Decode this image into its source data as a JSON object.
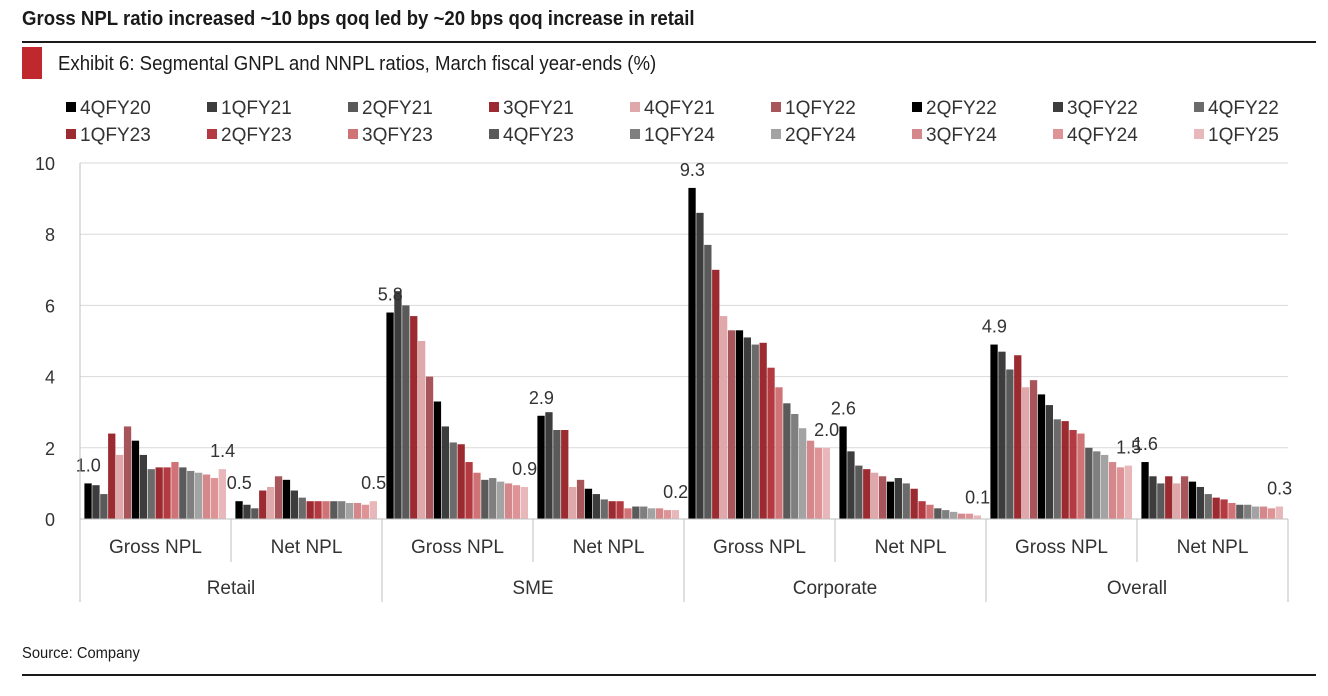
{
  "headline": "Gross NPL ratio increased ~10 bps qoq led by ~20 bps qoq increase in retail",
  "exhibit_title": "Exhibit 6: Segmental GNPL and NNPL ratios, March fiscal year-ends (%)",
  "source": "Source: Company",
  "colors": {
    "accent": "#c0282d",
    "series": [
      "#000000",
      "#3d3d3d",
      "#5a5a5a",
      "#9c2b31",
      "#dfa8ab",
      "#a8545b",
      "#000000",
      "#3d3d3d",
      "#6b6b6b",
      "#9c2b31",
      "#b23a40",
      "#cf7377",
      "#5a5a5a",
      "#7f7f7f",
      "#a3a3a3",
      "#d4888c",
      "#de9497",
      "#e7b7b9"
    ]
  },
  "chart_data": {
    "type": "bar",
    "title": "Exhibit 6: Segmental GNPL and NNPL ratios, March fiscal year-ends (%)",
    "ylim": [
      0,
      10
    ],
    "yticks": [
      "0",
      "2",
      "4",
      "6",
      "8",
      "10"
    ],
    "grid": true,
    "legend_position": "top",
    "groups": [
      "Retail",
      "SME",
      "Corporate",
      "Overall"
    ],
    "categories": [
      {
        "label": "Gross NPL",
        "group": "Retail"
      },
      {
        "label": "Net NPL",
        "group": "Retail"
      },
      {
        "label": "Gross NPL",
        "group": "SME"
      },
      {
        "label": "Net NPL",
        "group": "SME"
      },
      {
        "label": "Gross NPL",
        "group": "Corporate"
      },
      {
        "label": "Net NPL",
        "group": "Corporate"
      },
      {
        "label": "Gross NPL",
        "group": "Overall"
      },
      {
        "label": "Net NPL",
        "group": "Overall"
      }
    ],
    "series": [
      {
        "name": "4QFY20",
        "values": [
          1.0,
          0.5,
          5.8,
          2.9,
          9.3,
          2.6,
          4.9,
          1.6
        ]
      },
      {
        "name": "1QFY21",
        "values": [
          0.95,
          0.4,
          6.4,
          3.0,
          8.6,
          1.9,
          4.7,
          1.2
        ]
      },
      {
        "name": "2QFY21",
        "values": [
          0.7,
          0.3,
          6.0,
          2.5,
          7.7,
          1.5,
          4.2,
          1.0
        ]
      },
      {
        "name": "3QFY21",
        "values": [
          2.4,
          0.8,
          5.7,
          2.5,
          7.0,
          1.4,
          4.6,
          1.2
        ]
      },
      {
        "name": "4QFY21",
        "values": [
          1.8,
          0.9,
          5.0,
          0.9,
          5.7,
          1.3,
          3.7,
          1.0
        ]
      },
      {
        "name": "1QFY22",
        "values": [
          2.6,
          1.2,
          4.0,
          1.1,
          5.3,
          1.2,
          3.9,
          1.2
        ]
      },
      {
        "name": "2QFY22",
        "values": [
          2.2,
          1.1,
          3.3,
          0.85,
          5.3,
          1.05,
          3.5,
          1.05
        ]
      },
      {
        "name": "3QFY22",
        "values": [
          1.8,
          0.8,
          2.6,
          0.7,
          5.1,
          1.15,
          3.2,
          0.9
        ]
      },
      {
        "name": "4QFY22",
        "values": [
          1.4,
          0.6,
          2.15,
          0.55,
          4.9,
          1.0,
          2.8,
          0.7
        ]
      },
      {
        "name": "1QFY23",
        "values": [
          1.45,
          0.5,
          2.1,
          0.5,
          4.95,
          0.85,
          2.75,
          0.6
        ]
      },
      {
        "name": "2QFY23",
        "values": [
          1.45,
          0.5,
          1.6,
          0.5,
          4.25,
          0.5,
          2.5,
          0.55
        ]
      },
      {
        "name": "3QFY23",
        "values": [
          1.6,
          0.5,
          1.3,
          0.3,
          3.7,
          0.4,
          2.4,
          0.45
        ]
      },
      {
        "name": "4QFY23",
        "values": [
          1.45,
          0.5,
          1.1,
          0.35,
          3.25,
          0.3,
          2.0,
          0.4
        ]
      },
      {
        "name": "1QFY24",
        "values": [
          1.35,
          0.5,
          1.15,
          0.35,
          2.95,
          0.25,
          1.9,
          0.4
        ]
      },
      {
        "name": "2QFY24",
        "values": [
          1.3,
          0.45,
          1.05,
          0.3,
          2.55,
          0.2,
          1.8,
          0.35
        ]
      },
      {
        "name": "3QFY24",
        "values": [
          1.25,
          0.45,
          1.0,
          0.3,
          2.2,
          0.15,
          1.6,
          0.35
        ]
      },
      {
        "name": "4QFY24",
        "values": [
          1.15,
          0.4,
          0.95,
          0.25,
          2.0,
          0.15,
          1.45,
          0.3
        ]
      },
      {
        "name": "1QFY25",
        "values": [
          1.4,
          0.5,
          0.9,
          0.25,
          2.0,
          0.1,
          1.5,
          0.35
        ]
      }
    ],
    "data_labels": [
      {
        "category": 0,
        "series": 0,
        "text": "1.0"
      },
      {
        "category": 0,
        "series": 17,
        "text": "1.4"
      },
      {
        "category": 1,
        "series": 0,
        "text": "0.5"
      },
      {
        "category": 1,
        "series": 17,
        "text": "0.5"
      },
      {
        "category": 2,
        "series": 0,
        "text": "5.8"
      },
      {
        "category": 2,
        "series": 17,
        "text": "0.9"
      },
      {
        "category": 3,
        "series": 0,
        "text": "2.9"
      },
      {
        "category": 3,
        "series": 17,
        "text": "0.2"
      },
      {
        "category": 4,
        "series": 0,
        "text": "9.3"
      },
      {
        "category": 4,
        "series": 17,
        "text": "2.0"
      },
      {
        "category": 5,
        "series": 0,
        "text": "2.6"
      },
      {
        "category": 5,
        "series": 17,
        "text": "0.1"
      },
      {
        "category": 6,
        "series": 0,
        "text": "4.9"
      },
      {
        "category": 6,
        "series": 17,
        "text": "1.5"
      },
      {
        "category": 7,
        "series": 0,
        "text": "1.6"
      },
      {
        "category": 7,
        "series": 17,
        "text": "0.3"
      }
    ]
  }
}
